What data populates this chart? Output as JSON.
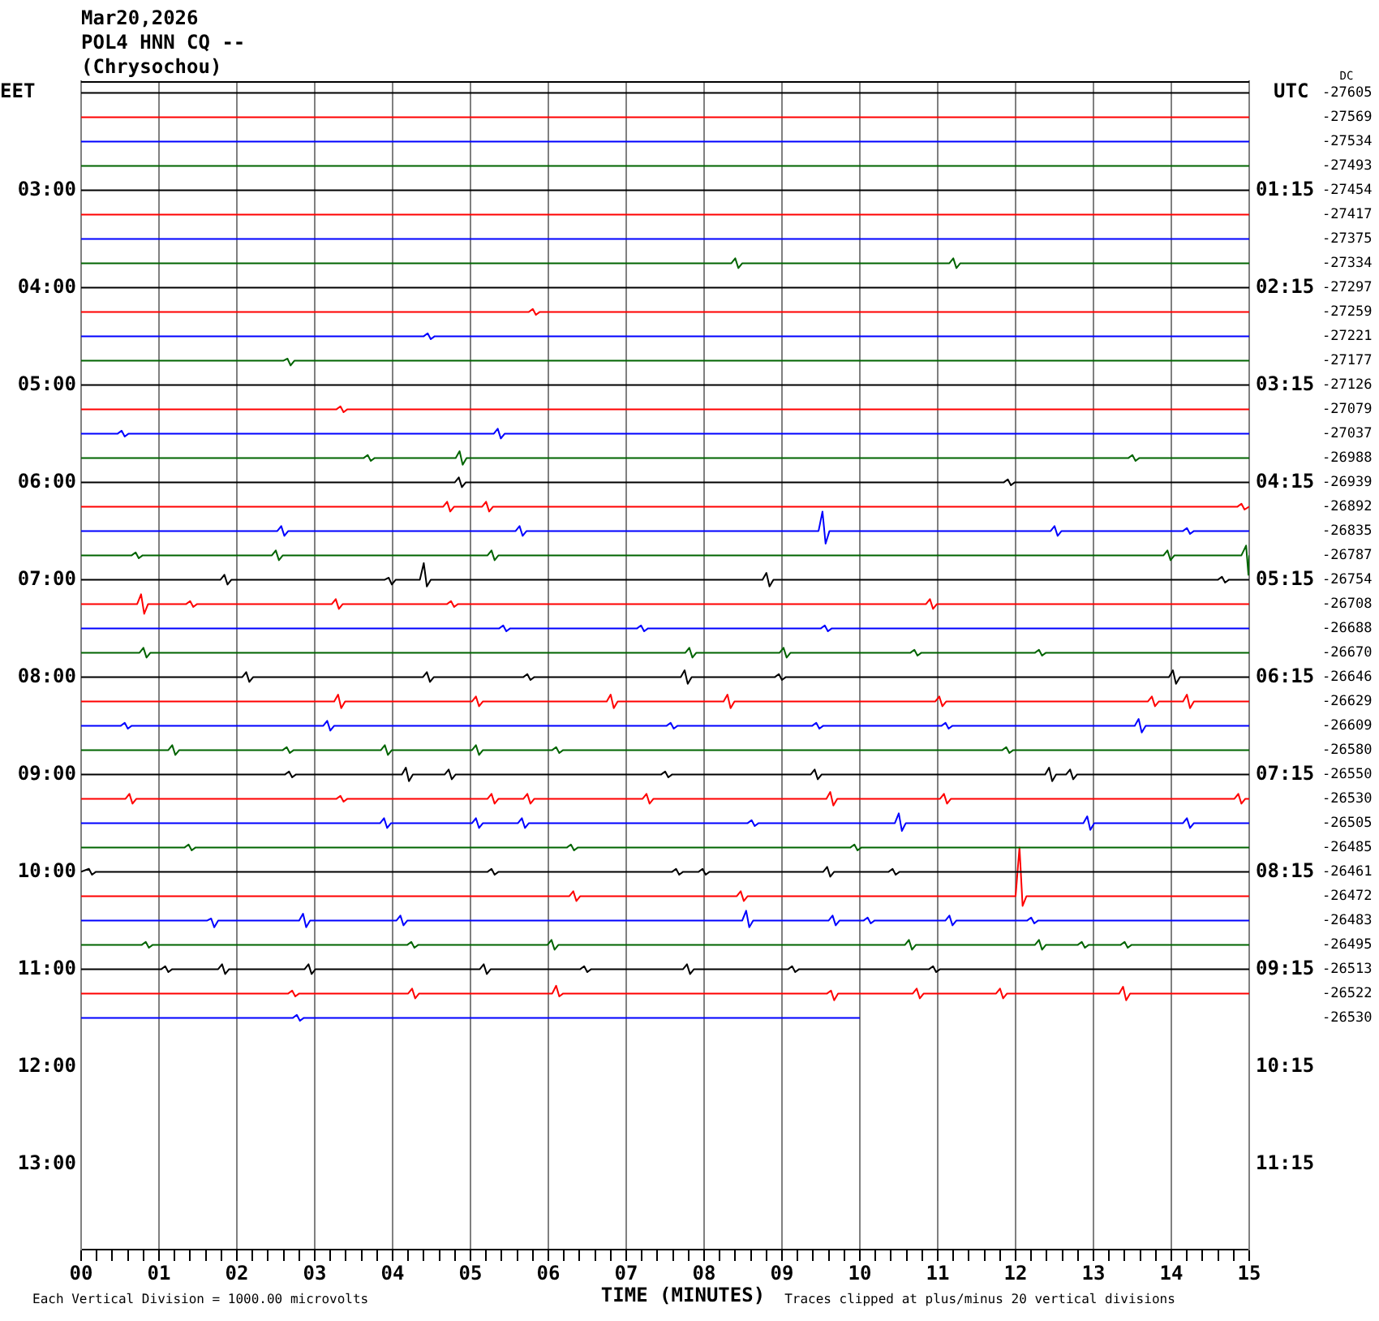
{
  "chart_data": {
    "type": "line",
    "title": "Mar20,2026",
    "subtitle": "POL4 HNN CQ --",
    "annotations": [
      "(Chrysochou)",
      "Each Vertical Division = 1000.00 microvolts",
      "Traces clipped at plus/minus 20 vertical divisions",
      "DC",
      "-27605",
      "-27569",
      "-27534",
      "-27493",
      "-27454",
      "-27417",
      "-27375",
      "-27334",
      "-27297",
      "-27259",
      "-27221",
      "-27177",
      "-27126",
      "-27079",
      "-27037",
      "-26988",
      "-26939",
      "-26892",
      "-26835",
      "-26787",
      "-26754",
      "-26708",
      "-26688",
      "-26670",
      "-26646",
      "-26629",
      "-26609",
      "-26580",
      "-26550",
      "-26530",
      "-26505",
      "-26485",
      "-26461",
      "-26472",
      "-26483",
      "-26495",
      "-26513",
      "-26522",
      "-26530"
    ],
    "xlabel": "TIME (MINUTES)",
    "ylabel": "EET",
    "y2label": "UTC",
    "grid": "x",
    "marker": "none",
    "xlim": [
      0,
      15
    ],
    "xticks": [
      {
        "value": 0,
        "label": "00"
      },
      {
        "value": 0.2,
        "label": null
      },
      {
        "value": 0.4,
        "label": null
      },
      {
        "value": 0.6,
        "label": null
      },
      {
        "value": 0.8,
        "label": null
      },
      {
        "value": 1,
        "label": "01"
      },
      {
        "value": 1.2,
        "label": null
      },
      {
        "value": 1.4,
        "label": null
      },
      {
        "value": 1.6,
        "label": null
      },
      {
        "value": 1.8,
        "label": null
      },
      {
        "value": 2,
        "label": "02"
      },
      {
        "value": 2.2,
        "label": null
      },
      {
        "value": 2.4,
        "label": null
      },
      {
        "value": 2.6,
        "label": null
      },
      {
        "value": 2.8,
        "label": null
      },
      {
        "value": 3,
        "label": "03"
      },
      {
        "value": 3.2,
        "label": null
      },
      {
        "value": 3.4,
        "label": null
      },
      {
        "value": 3.6,
        "label": null
      },
      {
        "value": 3.8,
        "label": null
      },
      {
        "value": 4,
        "label": "04"
      },
      {
        "value": 4.2,
        "label": null
      },
      {
        "value": 4.4,
        "label": null
      },
      {
        "value": 4.6,
        "label": null
      },
      {
        "value": 4.8,
        "label": null
      },
      {
        "value": 5,
        "label": "05"
      },
      {
        "value": 5.2,
        "label": null
      },
      {
        "value": 5.4,
        "label": null
      },
      {
        "value": 5.6,
        "label": null
      },
      {
        "value": 5.8,
        "label": null
      },
      {
        "value": 6,
        "label": "06"
      },
      {
        "value": 6.2,
        "label": null
      },
      {
        "value": 6.4,
        "label": null
      },
      {
        "value": 6.6,
        "label": null
      },
      {
        "value": 6.8,
        "label": null
      },
      {
        "value": 7,
        "label": "07"
      },
      {
        "value": 7.2,
        "label": null
      },
      {
        "value": 7.4,
        "label": null
      },
      {
        "value": 7.6,
        "label": null
      },
      {
        "value": 7.8,
        "label": null
      },
      {
        "value": 8,
        "label": "08"
      },
      {
        "value": 8.2,
        "label": null
      },
      {
        "value": 8.4,
        "label": null
      },
      {
        "value": 8.6,
        "label": null
      },
      {
        "value": 8.8,
        "label": null
      },
      {
        "value": 9,
        "label": "09"
      },
      {
        "value": 9.2,
        "label": null
      },
      {
        "value": 9.4,
        "label": null
      },
      {
        "value": 9.6,
        "label": null
      },
      {
        "value": 9.8,
        "label": null
      },
      {
        "value": 10,
        "label": "10"
      },
      {
        "value": 10.2,
        "label": null
      },
      {
        "value": 10.4,
        "label": null
      },
      {
        "value": 10.6,
        "label": null
      },
      {
        "value": 10.8,
        "label": null
      },
      {
        "value": 11,
        "label": "11"
      },
      {
        "value": 11.2,
        "label": null
      },
      {
        "value": 11.4,
        "label": null
      },
      {
        "value": 11.6,
        "label": null
      },
      {
        "value": 11.8,
        "label": null
      },
      {
        "value": 12,
        "label": "12"
      },
      {
        "value": 12.2,
        "label": null
      },
      {
        "value": 12.4,
        "label": null
      },
      {
        "value": 12.6,
        "label": null
      },
      {
        "value": 12.8,
        "label": null
      },
      {
        "value": 13,
        "label": "13"
      },
      {
        "value": 13.2,
        "label": null
      },
      {
        "value": 13.4,
        "label": null
      },
      {
        "value": 13.6,
        "label": null
      },
      {
        "value": 13.8,
        "label": null
      },
      {
        "value": 14,
        "label": "14"
      },
      {
        "value": 14.2,
        "label": null
      },
      {
        "value": 14.4,
        "label": null
      },
      {
        "value": 14.6,
        "label": null
      },
      {
        "value": 14.8,
        "label": null
      },
      {
        "value": 15,
        "label": "15"
      }
    ],
    "ylim": [
      13.88,
      1.88
    ],
    "yticks": [
      {
        "value": 3,
        "label": "03:00"
      },
      {
        "value": 4,
        "label": "04:00"
      },
      {
        "value": 5,
        "label": "05:00"
      },
      {
        "value": 6,
        "label": "06:00"
      },
      {
        "value": 7,
        "label": "07:00"
      },
      {
        "value": 8,
        "label": "08:00"
      },
      {
        "value": 9,
        "label": "09:00"
      },
      {
        "value": 10,
        "label": "10:00"
      },
      {
        "value": 11,
        "label": "11:00"
      },
      {
        "value": 12,
        "label": "12:00"
      },
      {
        "value": 13,
        "label": "13:00"
      }
    ],
    "y2lim": [
      12.13,
      0.13
    ],
    "y2ticks": [
      {
        "value": 1.25,
        "label": "01:15"
      },
      {
        "value": 2.25,
        "label": "02:15"
      },
      {
        "value": 3.25,
        "label": "03:15"
      },
      {
        "value": 4.25,
        "label": "04:15"
      },
      {
        "value": 5.25,
        "label": "05:15"
      },
      {
        "value": 6.25,
        "label": "06:15"
      },
      {
        "value": 7.25,
        "label": "07:15"
      },
      {
        "value": 8.25,
        "label": "08:15"
      },
      {
        "value": 9.25,
        "label": "09:15"
      },
      {
        "value": 10.25,
        "label": "10:15"
      },
      {
        "value": 11.25,
        "label": "11:15"
      }
    ],
    "series": [
      {
        "color": "#000000",
        "x": [
          0,
          15
        ],
        "values": [
          2,
          2
        ]
      },
      {
        "color": "#ff0000",
        "x": [
          0,
          15
        ],
        "values": [
          2.25,
          2.25
        ]
      },
      {
        "color": "#0000ff",
        "x": [
          0,
          15
        ],
        "values": [
          2.5,
          2.5
        ]
      },
      {
        "color": "#006400",
        "x": [
          0,
          15
        ],
        "values": [
          2.75,
          2.75
        ]
      },
      {
        "color": "#000000",
        "x": [
          0,
          15
        ],
        "values": [
          3,
          3
        ]
      },
      {
        "color": "#ff0000",
        "x": [
          0,
          15
        ],
        "values": [
          3.25,
          3.25
        ]
      },
      {
        "color": "#0000ff",
        "x": [
          0,
          15
        ],
        "values": [
          3.5,
          3.5
        ]
      },
      {
        "color": "#006400",
        "x": [
          0,
          8.35,
          8.4,
          8.44,
          8.49,
          11.15,
          11.2,
          11.24,
          11.29,
          15
        ],
        "values": [
          3.75,
          3.75,
          3.7,
          3.8,
          3.75,
          3.75,
          3.7,
          3.8,
          3.75,
          3.75
        ]
      },
      {
        "color": "#000000",
        "x": [
          0,
          15
        ],
        "values": [
          4,
          4
        ]
      },
      {
        "color": "#ff0000",
        "x": [
          0,
          5.75,
          5.8,
          5.84,
          5.89,
          15
        ],
        "values": [
          4.25,
          4.25,
          4.22,
          4.28,
          4.25,
          4.25
        ]
      },
      {
        "color": "#0000ff",
        "x": [
          0,
          4.4,
          4.45,
          4.49,
          4.54,
          15
        ],
        "values": [
          4.5,
          4.5,
          4.47,
          4.53,
          4.5,
          4.5
        ]
      },
      {
        "color": "#006400",
        "x": [
          0,
          2.6,
          2.65,
          2.69,
          2.74,
          15
        ],
        "values": [
          4.75,
          4.75,
          4.73,
          4.8,
          4.75,
          4.75
        ]
      },
      {
        "color": "#000000",
        "x": [
          0,
          15
        ],
        "values": [
          5,
          5
        ]
      },
      {
        "color": "#ff0000",
        "x": [
          0,
          3.28,
          3.33,
          3.37,
          3.42,
          15
        ],
        "values": [
          5.25,
          5.25,
          5.22,
          5.28,
          5.25,
          5.25
        ]
      },
      {
        "color": "#0000ff",
        "x": [
          0,
          0.47,
          0.52,
          0.56,
          0.61,
          5.3,
          5.35,
          5.39,
          5.44,
          15
        ],
        "values": [
          5.5,
          5.5,
          5.47,
          5.53,
          5.5,
          5.5,
          5.45,
          5.55,
          5.5,
          5.5
        ]
      },
      {
        "color": "#006400",
        "x": [
          0,
          3.63,
          3.68,
          3.72,
          3.77,
          4.81,
          4.86,
          4.9,
          4.95,
          13.45,
          13.5,
          13.54,
          13.59,
          15
        ],
        "values": [
          5.75,
          5.75,
          5.72,
          5.78,
          5.75,
          5.75,
          5.68,
          5.82,
          5.75,
          5.75,
          5.72,
          5.78,
          5.75,
          5.75
        ]
      },
      {
        "color": "#000000",
        "x": [
          0,
          4.8,
          4.85,
          4.89,
          4.94,
          11.85,
          11.9,
          11.94,
          11.99,
          15
        ],
        "values": [
          6,
          6,
          5.95,
          6.05,
          6,
          6,
          5.97,
          6.03,
          6,
          6
        ]
      },
      {
        "color": "#ff0000",
        "x": [
          0,
          4.65,
          4.7,
          4.74,
          4.79,
          5.15,
          5.2,
          5.24,
          5.29,
          14.85,
          14.9,
          14.94,
          15
        ],
        "values": [
          6.25,
          6.25,
          6.2,
          6.3,
          6.25,
          6.25,
          6.2,
          6.3,
          6.25,
          6.25,
          6.22,
          6.28,
          6.25
        ]
      },
      {
        "color": "#0000ff",
        "x": [
          0,
          2.52,
          2.57,
          2.61,
          2.66,
          5.58,
          5.63,
          5.67,
          5.72,
          9.47,
          9.52,
          9.56,
          9.61,
          12.45,
          12.5,
          12.54,
          12.59,
          14.15,
          14.2,
          14.24,
          14.29,
          15
        ],
        "values": [
          6.5,
          6.5,
          6.45,
          6.55,
          6.5,
          6.5,
          6.45,
          6.55,
          6.5,
          6.5,
          6.3,
          6.63,
          6.5,
          6.5,
          6.45,
          6.55,
          6.5,
          6.5,
          6.47,
          6.53,
          6.5,
          6.5
        ]
      },
      {
        "color": "#006400",
        "x": [
          0,
          0.65,
          0.7,
          0.74,
          0.79,
          2.45,
          2.5,
          2.54,
          2.59,
          5.22,
          5.27,
          5.31,
          5.36,
          13.9,
          13.95,
          13.99,
          14.04,
          14.9,
          14.96,
          14.99,
          15
        ],
        "values": [
          6.75,
          6.75,
          6.72,
          6.78,
          6.75,
          6.75,
          6.7,
          6.8,
          6.75,
          6.75,
          6.7,
          6.8,
          6.75,
          6.75,
          6.7,
          6.8,
          6.75,
          6.75,
          6.65,
          6.95,
          6.75
        ]
      },
      {
        "color": "#000000",
        "x": [
          0,
          1.79,
          1.84,
          1.88,
          1.93,
          3.9,
          3.95,
          3.99,
          4.04,
          4.35,
          4.4,
          4.44,
          4.49,
          8.75,
          8.8,
          8.84,
          8.89,
          14.6,
          14.65,
          14.69,
          14.74,
          15
        ],
        "values": [
          7,
          7,
          6.95,
          7.05,
          7,
          7,
          6.98,
          7.05,
          7,
          7,
          6.83,
          7.07,
          7,
          7,
          6.93,
          7.07,
          7,
          7,
          6.97,
          7.03,
          7,
          7
        ]
      },
      {
        "color": "#ff0000",
        "x": [
          0,
          0.72,
          0.77,
          0.81,
          0.86,
          1.35,
          1.4,
          1.44,
          1.49,
          3.22,
          3.27,
          3.31,
          3.36,
          4.7,
          4.75,
          4.79,
          4.84,
          10.85,
          10.9,
          10.94,
          10.99,
          15
        ],
        "values": [
          7.25,
          7.25,
          7.15,
          7.35,
          7.25,
          7.25,
          7.22,
          7.28,
          7.25,
          7.25,
          7.2,
          7.3,
          7.25,
          7.25,
          7.22,
          7.28,
          7.25,
          7.25,
          7.2,
          7.3,
          7.25,
          7.25
        ]
      },
      {
        "color": "#0000ff",
        "x": [
          0,
          5.37,
          5.42,
          5.46,
          5.51,
          7.14,
          7.19,
          7.23,
          7.28,
          9.5,
          9.55,
          9.59,
          9.64,
          15
        ],
        "values": [
          7.5,
          7.5,
          7.47,
          7.53,
          7.5,
          7.5,
          7.47,
          7.53,
          7.5,
          7.5,
          7.47,
          7.53,
          7.5,
          7.5
        ]
      },
      {
        "color": "#006400",
        "x": [
          0,
          0.75,
          0.8,
          0.84,
          0.89,
          7.76,
          7.81,
          7.85,
          7.9,
          8.97,
          9.02,
          9.06,
          9.11,
          10.65,
          10.7,
          10.74,
          10.79,
          12.25,
          12.3,
          12.34,
          12.39,
          15
        ],
        "values": [
          7.75,
          7.75,
          7.7,
          7.8,
          7.75,
          7.75,
          7.7,
          7.8,
          7.75,
          7.75,
          7.7,
          7.8,
          7.75,
          7.75,
          7.72,
          7.78,
          7.75,
          7.75,
          7.72,
          7.78,
          7.75,
          7.75
        ]
      },
      {
        "color": "#000000",
        "x": [
          0,
          2.07,
          2.12,
          2.16,
          2.21,
          4.39,
          4.44,
          4.48,
          4.53,
          5.68,
          5.73,
          5.77,
          5.82,
          7.7,
          7.75,
          7.79,
          7.84,
          8.91,
          8.96,
          9,
          9.05,
          13.97,
          14.02,
          14.06,
          14.11,
          15
        ],
        "values": [
          8,
          8,
          7.95,
          8.05,
          8,
          8,
          7.95,
          8.05,
          8,
          8,
          7.97,
          8.03,
          8,
          8,
          7.93,
          8.07,
          8,
          8,
          7.97,
          8.03,
          8,
          8,
          7.93,
          8.07,
          8,
          8
        ]
      },
      {
        "color": "#ff0000",
        "x": [
          0,
          3.25,
          3.3,
          3.34,
          3.39,
          5.02,
          5.07,
          5.11,
          5.16,
          6.75,
          6.8,
          6.84,
          6.89,
          8.25,
          8.3,
          8.34,
          8.39,
          10.97,
          11.02,
          11.06,
          11.11,
          13.7,
          13.75,
          13.79,
          13.84,
          14.15,
          14.2,
          14.24,
          14.29,
          15
        ],
        "values": [
          8.25,
          8.25,
          8.18,
          8.32,
          8.25,
          8.25,
          8.2,
          8.3,
          8.25,
          8.25,
          8.18,
          8.32,
          8.25,
          8.25,
          8.18,
          8.32,
          8.25,
          8.25,
          8.2,
          8.3,
          8.25,
          8.25,
          8.2,
          8.3,
          8.25,
          8.25,
          8.18,
          8.32,
          8.25,
          8.25
        ]
      },
      {
        "color": "#0000ff",
        "x": [
          0,
          0.51,
          0.56,
          0.6,
          0.65,
          3.11,
          3.16,
          3.2,
          3.25,
          7.52,
          7.57,
          7.61,
          7.66,
          9.39,
          9.44,
          9.48,
          9.53,
          11.05,
          11.1,
          11.14,
          11.19,
          13.53,
          13.58,
          13.62,
          13.67,
          15
        ],
        "values": [
          8.5,
          8.5,
          8.47,
          8.53,
          8.5,
          8.5,
          8.45,
          8.55,
          8.5,
          8.5,
          8.47,
          8.53,
          8.5,
          8.5,
          8.47,
          8.53,
          8.5,
          8.5,
          8.47,
          8.53,
          8.5,
          8.5,
          8.43,
          8.57,
          8.5,
          8.5
        ]
      },
      {
        "color": "#006400",
        "x": [
          0,
          1.12,
          1.17,
          1.21,
          1.26,
          2.59,
          2.64,
          2.68,
          2.73,
          3.85,
          3.9,
          3.94,
          3.99,
          5.02,
          5.07,
          5.11,
          5.16,
          6.05,
          6.1,
          6.14,
          6.19,
          11.83,
          11.88,
          11.92,
          11.97,
          15
        ],
        "values": [
          8.75,
          8.75,
          8.7,
          8.8,
          8.75,
          8.75,
          8.72,
          8.78,
          8.75,
          8.75,
          8.7,
          8.8,
          8.75,
          8.75,
          8.7,
          8.8,
          8.75,
          8.75,
          8.72,
          8.78,
          8.75,
          8.75,
          8.72,
          8.78,
          8.75,
          8.75
        ]
      },
      {
        "color": "#000000",
        "x": [
          0,
          2.62,
          2.67,
          2.71,
          2.76,
          4.12,
          4.17,
          4.21,
          4.26,
          4.67,
          4.72,
          4.76,
          4.81,
          7.45,
          7.5,
          7.54,
          7.59,
          9.37,
          9.42,
          9.46,
          9.51,
          12.38,
          12.43,
          12.47,
          12.52,
          12.65,
          12.7,
          12.74,
          12.79,
          15
        ],
        "values": [
          9,
          9,
          8.97,
          9.03,
          9,
          9,
          8.93,
          9.07,
          9,
          9,
          8.95,
          9.05,
          9,
          9,
          8.97,
          9.03,
          9,
          9,
          8.95,
          9.05,
          9,
          9,
          8.93,
          9.07,
          9,
          9,
          8.95,
          9.05,
          9,
          9
        ]
      },
      {
        "color": "#ff0000",
        "x": [
          0,
          0.57,
          0.62,
          0.66,
          0.71,
          3.28,
          3.33,
          3.37,
          3.42,
          5.22,
          5.27,
          5.31,
          5.36,
          5.68,
          5.73,
          5.77,
          5.82,
          7.21,
          7.26,
          7.3,
          7.35,
          9.57,
          9.62,
          9.66,
          9.71,
          11.03,
          11.08,
          11.12,
          11.17,
          14.81,
          14.86,
          14.9,
          14.95,
          15
        ],
        "values": [
          9.25,
          9.25,
          9.2,
          9.3,
          9.25,
          9.25,
          9.22,
          9.28,
          9.25,
          9.25,
          9.2,
          9.3,
          9.25,
          9.25,
          9.2,
          9.3,
          9.25,
          9.25,
          9.2,
          9.3,
          9.25,
          9.25,
          9.18,
          9.32,
          9.25,
          9.25,
          9.2,
          9.3,
          9.25,
          9.25,
          9.2,
          9.3,
          9.25,
          9.25
        ]
      },
      {
        "color": "#0000ff",
        "x": [
          0,
          3.84,
          3.89,
          3.93,
          3.98,
          5.02,
          5.07,
          5.11,
          5.16,
          5.61,
          5.66,
          5.7,
          5.75,
          8.56,
          8.61,
          8.65,
          8.7,
          10.45,
          10.5,
          10.54,
          10.59,
          12.87,
          12.92,
          12.96,
          13.01,
          14.15,
          14.2,
          14.24,
          14.29,
          15
        ],
        "values": [
          9.5,
          9.5,
          9.45,
          9.55,
          9.5,
          9.5,
          9.45,
          9.55,
          9.5,
          9.5,
          9.45,
          9.55,
          9.5,
          9.5,
          9.47,
          9.53,
          9.5,
          9.5,
          9.4,
          9.58,
          9.5,
          9.5,
          9.43,
          9.57,
          9.5,
          9.5,
          9.45,
          9.55,
          9.5,
          9.5
        ]
      },
      {
        "color": "#006400",
        "x": [
          0,
          1.33,
          1.38,
          1.42,
          1.47,
          6.24,
          6.29,
          6.33,
          6.38,
          9.88,
          9.93,
          9.97,
          10.02,
          15
        ],
        "values": [
          9.75,
          9.75,
          9.72,
          9.78,
          9.75,
          9.75,
          9.72,
          9.78,
          9.75,
          9.75,
          9.72,
          9.78,
          9.75,
          9.75
        ]
      },
      {
        "color": "#000000",
        "x": [
          0,
          0.1,
          0.14,
          0.19,
          5.22,
          5.27,
          5.31,
          5.36,
          7.59,
          7.64,
          7.68,
          7.73,
          7.93,
          7.98,
          8.02,
          8.07,
          9.53,
          9.58,
          9.62,
          9.67,
          10.37,
          10.42,
          10.46,
          10.51,
          15
        ],
        "values": [
          10,
          9.97,
          10.03,
          10,
          10,
          9.97,
          10.03,
          10,
          10,
          9.97,
          10.03,
          10,
          10,
          9.97,
          10.03,
          10,
          10,
          9.95,
          10.05,
          10,
          10,
          9.97,
          10.03,
          10,
          10
        ]
      },
      {
        "color": "#ff0000",
        "x": [
          0,
          6.27,
          6.32,
          6.36,
          6.41,
          8.42,
          8.47,
          8.51,
          8.56,
          12,
          12.05,
          12.09,
          12.14,
          15
        ],
        "values": [
          10.25,
          10.25,
          10.2,
          10.3,
          10.25,
          10.25,
          10.2,
          10.3,
          10.25,
          10.25,
          9.75,
          10.35,
          10.25,
          10.25
        ]
      },
      {
        "color": "#0000ff",
        "x": [
          0,
          1.62,
          1.67,
          1.71,
          1.76,
          2.8,
          2.85,
          2.89,
          2.94,
          4.05,
          4.1,
          4.14,
          4.19,
          8.49,
          8.54,
          8.58,
          8.63,
          9.6,
          9.65,
          9.69,
          9.74,
          10.05,
          10.1,
          10.14,
          10.19,
          11.1,
          11.15,
          11.19,
          11.24,
          12.15,
          12.2,
          12.24,
          12.29,
          15
        ],
        "values": [
          10.5,
          10.5,
          10.48,
          10.57,
          10.5,
          10.5,
          10.43,
          10.57,
          10.5,
          10.5,
          10.45,
          10.55,
          10.5,
          10.5,
          10.4,
          10.57,
          10.5,
          10.5,
          10.45,
          10.55,
          10.5,
          10.5,
          10.47,
          10.53,
          10.5,
          10.5,
          10.45,
          10.55,
          10.5,
          10.5,
          10.47,
          10.53,
          10.5,
          10.5
        ]
      },
      {
        "color": "#006400",
        "x": [
          0,
          0.78,
          0.83,
          0.87,
          0.92,
          4.19,
          4.24,
          4.28,
          4.33,
          5.99,
          6.04,
          6.08,
          6.13,
          10.58,
          10.63,
          10.67,
          10.72,
          12.25,
          12.3,
          12.34,
          12.39,
          12.8,
          12.85,
          12.89,
          12.94,
          13.35,
          13.4,
          13.44,
          13.49,
          15
        ],
        "values": [
          10.75,
          10.75,
          10.72,
          10.78,
          10.75,
          10.75,
          10.72,
          10.78,
          10.75,
          10.75,
          10.7,
          10.8,
          10.75,
          10.75,
          10.7,
          10.8,
          10.75,
          10.75,
          10.7,
          10.8,
          10.75,
          10.75,
          10.72,
          10.78,
          10.75,
          10.75,
          10.72,
          10.78,
          10.75,
          10.75
        ]
      },
      {
        "color": "#000000",
        "x": [
          0,
          1.03,
          1.08,
          1.12,
          1.17,
          1.76,
          1.81,
          1.85,
          1.9,
          2.87,
          2.92,
          2.96,
          3.01,
          5.12,
          5.17,
          5.21,
          5.26,
          6.41,
          6.46,
          6.5,
          6.55,
          7.73,
          7.78,
          7.82,
          7.87,
          9.08,
          9.13,
          9.17,
          9.22,
          10.89,
          10.94,
          10.98,
          11.03,
          15
        ],
        "values": [
          11,
          11,
          10.97,
          11.03,
          11,
          11,
          10.95,
          11.05,
          11,
          11,
          10.95,
          11.05,
          11,
          11,
          10.95,
          11.05,
          11,
          11,
          10.97,
          11.03,
          11,
          11,
          10.95,
          11.05,
          11,
          11,
          10.97,
          11.03,
          11,
          11,
          10.97,
          11.03,
          11,
          11
        ]
      },
      {
        "color": "#ff0000",
        "x": [
          0,
          2.66,
          2.71,
          2.75,
          2.8,
          4.2,
          4.25,
          4.29,
          4.34,
          6.05,
          6.1,
          6.14,
          6.19,
          9.58,
          9.63,
          9.67,
          9.72,
          10.68,
          10.73,
          10.77,
          10.82,
          11.75,
          11.8,
          11.84,
          11.89,
          13.33,
          13.38,
          13.42,
          13.47,
          15
        ],
        "values": [
          11.25,
          11.25,
          11.22,
          11.28,
          11.25,
          11.25,
          11.2,
          11.3,
          11.25,
          11.25,
          11.17,
          11.28,
          11.25,
          11.25,
          11.22,
          11.32,
          11.25,
          11.25,
          11.2,
          11.3,
          11.25,
          11.25,
          11.2,
          11.3,
          11.25,
          11.25,
          11.18,
          11.32,
          11.25,
          11.25
        ]
      },
      {
        "color": "#0000ff",
        "x": [
          0,
          2.72,
          2.77,
          2.81,
          2.86,
          10
        ],
        "values": [
          11.5,
          11.5,
          11.47,
          11.53,
          11.5,
          11.5
        ]
      }
    ]
  }
}
